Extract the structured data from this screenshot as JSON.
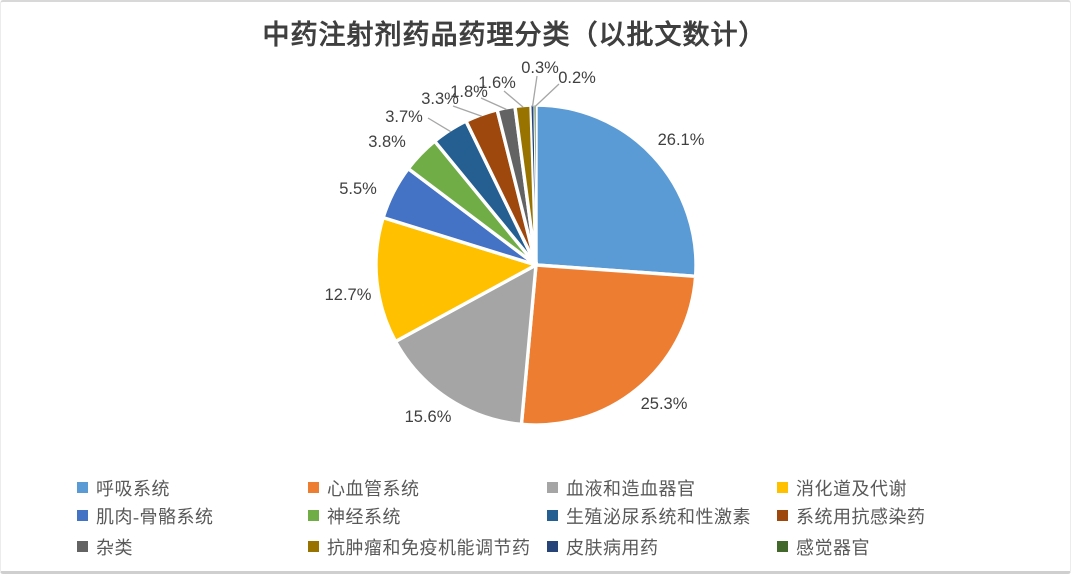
{
  "window": {
    "background": "#ffffff",
    "frame_border_color": "#d8d8d8"
  },
  "chart_data": {
    "type": "pie",
    "title": "中药注射剂药品药理分类（以批文数计）",
    "legend_position": "bottom",
    "legend_columns": 4,
    "start_angle_deg": 0,
    "direction": "clockwise",
    "value_unit": "percent",
    "label_color": "#404040",
    "leader_line_color": "#a6a6a6",
    "slices": [
      {
        "label": "呼吸系统",
        "value": 26.1,
        "data_label": "26.1%",
        "color": "#5B9BD5"
      },
      {
        "label": "心血管系统",
        "value": 25.3,
        "data_label": "25.3%",
        "color": "#ED7D31"
      },
      {
        "label": "血液和造血器官",
        "value": 15.6,
        "data_label": "15.6%",
        "color": "#A5A5A5"
      },
      {
        "label": "消化道及代谢",
        "value": 12.7,
        "data_label": "12.7%",
        "color": "#FFC000"
      },
      {
        "label": "肌肉-骨骼系统",
        "value": 5.5,
        "data_label": "5.5%",
        "color": "#4472C4"
      },
      {
        "label": "神经系统",
        "value": 3.8,
        "data_label": "3.8%",
        "color": "#70AD47"
      },
      {
        "label": "生殖泌尿系统和性激素",
        "value": 3.7,
        "data_label": "3.7%",
        "color": "#255E91"
      },
      {
        "label": "系统用抗感染药",
        "value": 3.3,
        "data_label": "3.3%",
        "color": "#9E480E"
      },
      {
        "label": "杂类",
        "value": 1.8,
        "data_label": "1.8%",
        "color": "#636363"
      },
      {
        "label": "抗肿瘤和免疫机能调节药",
        "value": 1.6,
        "data_label": "1.6%",
        "color": "#997300"
      },
      {
        "label": "皮肤病用药",
        "value": 0.3,
        "data_label": "0.3%",
        "color": "#264478"
      },
      {
        "label": "感觉器官",
        "value": 0.2,
        "data_label": "0.2%",
        "color": "#43682B"
      }
    ]
  }
}
